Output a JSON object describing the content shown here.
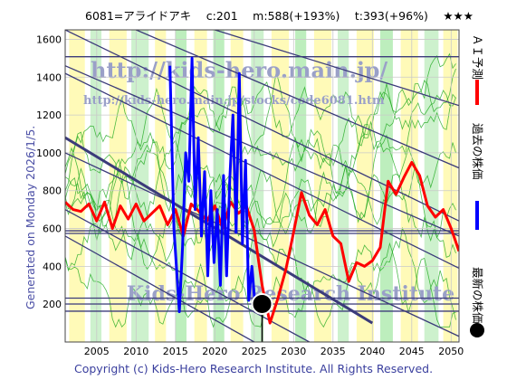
{
  "chart_data": {
    "type": "line",
    "title": "6081=アライドアキ　 c:201 　m:588(+193%) 　t:393(+96%) 　★★★",
    "xlim": [
      2001,
      2051
    ],
    "ylim": [
      0,
      1650
    ],
    "xticks": [
      2005,
      2010,
      2015,
      2020,
      2025,
      2030,
      2035,
      2040,
      2045,
      2050
    ],
    "yticks": [
      200,
      400,
      600,
      800,
      1000,
      1200,
      1400,
      1600
    ],
    "horizontal_levels": [
      163,
      201,
      232,
      574,
      588,
      1508
    ],
    "current": {
      "x": 2026.0,
      "y": 201
    },
    "series": [
      {
        "name": "ＡＩ予測",
        "color": "#ff0000",
        "x": [
          2001,
          2002,
          2003,
          2004,
          2005,
          2006,
          2007,
          2008,
          2009,
          2010,
          2011,
          2012,
          2013,
          2014,
          2015,
          2016,
          2017,
          2018,
          2019,
          2020,
          2021,
          2022,
          2023,
          2024,
          2025,
          2026,
          2027,
          2028,
          2029,
          2030,
          2031,
          2032,
          2033,
          2034,
          2035,
          2036,
          2037,
          2038,
          2039,
          2040,
          2041,
          2042,
          2043,
          2044,
          2045,
          2046,
          2047,
          2048,
          2049,
          2050,
          2051
        ],
        "values": [
          740,
          700,
          690,
          730,
          640,
          740,
          600,
          720,
          650,
          730,
          640,
          680,
          720,
          620,
          700,
          560,
          730,
          690,
          640,
          720,
          600,
          740,
          680,
          720,
          590,
          300,
          100,
          230,
          380,
          580,
          790,
          670,
          620,
          700,
          560,
          520,
          320,
          420,
          400,
          430,
          500,
          850,
          780,
          870,
          950,
          880,
          720,
          660,
          700,
          600,
          480
        ]
      },
      {
        "name": "過去の株価",
        "color": "#0000ff",
        "x": [
          2014.3,
          2014.8,
          2015.5,
          2015.9,
          2016.3,
          2016.7,
          2017.1,
          2017.5,
          2017.9,
          2018.3,
          2018.7,
          2019.1,
          2019.5,
          2019.9,
          2020.3,
          2020.7,
          2021.1,
          2021.5,
          2021.9,
          2022.3,
          2022.7,
          2023.1,
          2023.5,
          2023.9,
          2024.3,
          2024.7,
          2025.1
        ],
        "values": [
          1460,
          600,
          160,
          500,
          1000,
          850,
          1500,
          700,
          1080,
          560,
          900,
          350,
          800,
          420,
          700,
          300,
          880,
          350,
          860,
          1200,
          580,
          1420,
          520,
          960,
          220,
          400,
          200
        ]
      }
    ],
    "legend": [
      {
        "label": "ＡＩ予測",
        "color": "#ff0000"
      },
      {
        "label": "過去の株価",
        "color": "#0000ff"
      },
      {
        "label": "最新の株価",
        "color": "#000000"
      }
    ],
    "legend_position": "right",
    "watermarks": [
      "http://kids-hero.main.jp/",
      "http://kids-hero.main.jp/stocks/code6081.htm",
      "Kids-Hero Research Institute"
    ],
    "side_label": "Generated on Monday 2026/1/5.",
    "footer": "Copyright (c) Kids-Hero Research Institute. All Rights Reserved."
  }
}
